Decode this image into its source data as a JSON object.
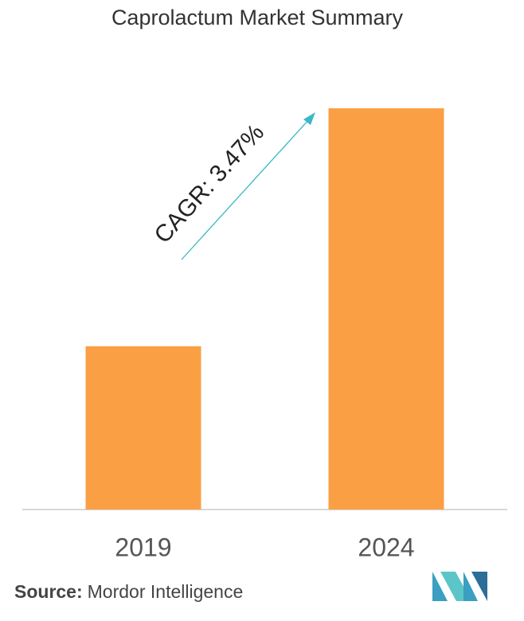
{
  "chart_data": {
    "type": "bar",
    "title": "Caprolactum Market Summary",
    "categories": [
      "2019",
      "2024"
    ],
    "values": [
      40.7,
      100
    ],
    "color": "#fb9f45",
    "ylim": [
      0,
      100
    ],
    "annotation": "CAGR: 3.47%",
    "source_label": "Source:",
    "source": "Mordor Intelligence"
  }
}
